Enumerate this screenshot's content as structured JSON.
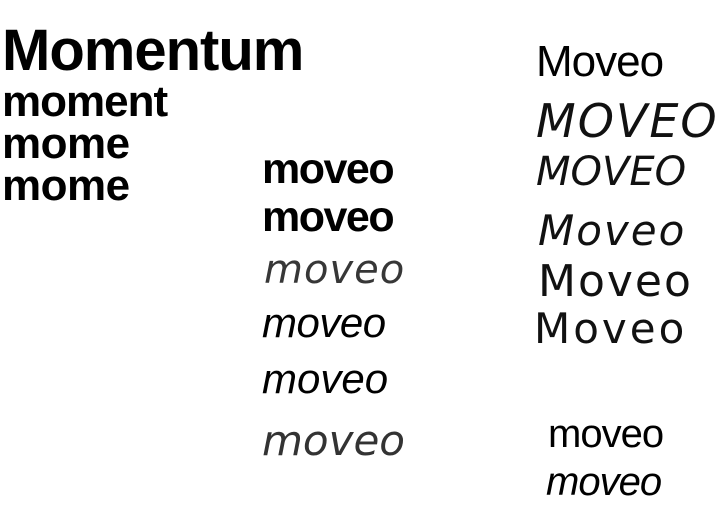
{
  "column1": {
    "line1": "Momentum",
    "line2": "moment",
    "line3": "mome",
    "line4": "mome"
  },
  "column2": {
    "items": [
      "moveo",
      "moveo",
      "moveo",
      "moveo",
      "moveo",
      "moveo"
    ]
  },
  "column3": {
    "items": [
      "Moveo",
      "MOVEO",
      "MOVEO",
      "Moveo",
      "Moveo",
      "Moveo",
      "moveo",
      "moveo"
    ]
  }
}
